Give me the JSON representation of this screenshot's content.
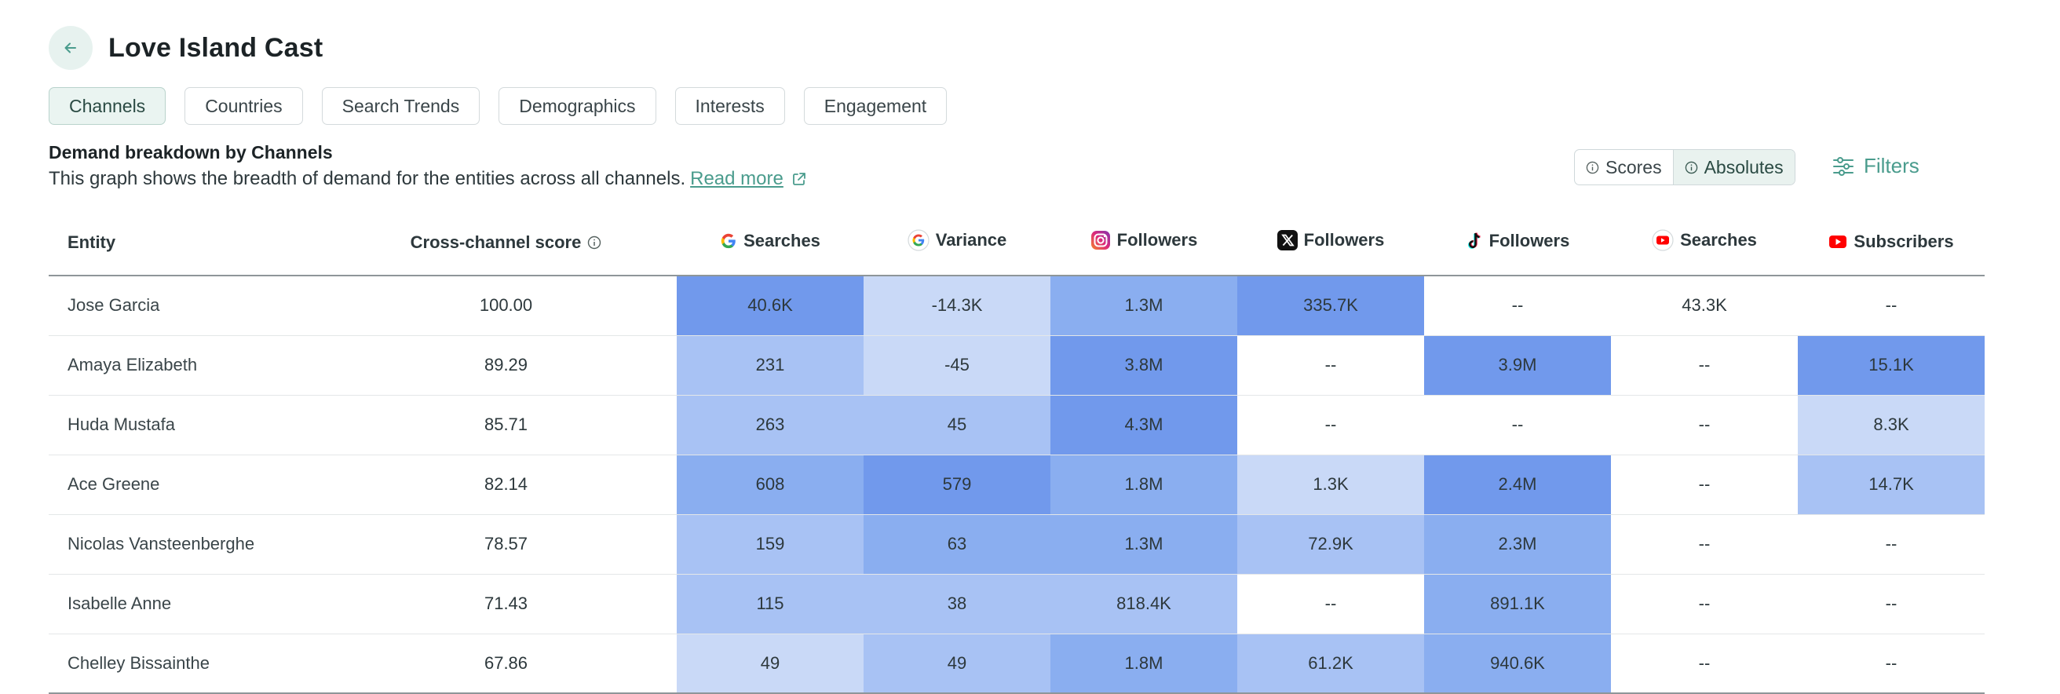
{
  "header": {
    "title": "Love Island Cast",
    "back_icon": "arrow-left-icon"
  },
  "tabs": [
    {
      "label": "Channels",
      "active": true
    },
    {
      "label": "Countries",
      "active": false
    },
    {
      "label": "Search Trends",
      "active": false
    },
    {
      "label": "Demographics",
      "active": false
    },
    {
      "label": "Interests",
      "active": false
    },
    {
      "label": "Engagement",
      "active": false
    }
  ],
  "description": {
    "title": "Demand breakdown by Channels",
    "text": "This graph shows the breadth of demand for the entities across all channels.",
    "read_more": "Read more"
  },
  "toggle": {
    "options": [
      {
        "label": "Scores",
        "active": false
      },
      {
        "label": "Absolutes",
        "active": true
      }
    ]
  },
  "filters": {
    "label": "Filters"
  },
  "colors": {
    "accent": "#4a9c8d",
    "heat_1": "#c9d9f7",
    "heat_2": "#a8c2f4",
    "heat_3": "#8aaef0",
    "heat_4": "#7199ec"
  },
  "table": {
    "columns": [
      {
        "label": "Entity",
        "icon": null
      },
      {
        "label": "Cross-channel score",
        "icon": "info-icon"
      },
      {
        "label": "Searches",
        "icon": "google-icon"
      },
      {
        "label": "Variance",
        "icon": "google-icon"
      },
      {
        "label": "Followers",
        "icon": "instagram-icon"
      },
      {
        "label": "Followers",
        "icon": "x-icon"
      },
      {
        "label": "Followers",
        "icon": "tiktok-icon"
      },
      {
        "label": "Searches",
        "icon": "youtube-icon"
      },
      {
        "label": "Subscribers",
        "icon": "youtube-icon"
      }
    ],
    "rows": [
      {
        "entity": "Jose Garcia",
        "score": "100.00",
        "cells": [
          {
            "value": "40.6K",
            "level": 4
          },
          {
            "value": "-14.3K",
            "level": 1
          },
          {
            "value": "1.3M",
            "level": 3
          },
          {
            "value": "335.7K",
            "level": 4
          },
          {
            "value": "--",
            "level": 0
          },
          {
            "value": "43.3K",
            "level": 0
          },
          {
            "value": "--",
            "level": 0
          }
        ]
      },
      {
        "entity": "Amaya Elizabeth",
        "score": "89.29",
        "cells": [
          {
            "value": "231",
            "level": 2
          },
          {
            "value": "-45",
            "level": 1
          },
          {
            "value": "3.8M",
            "level": 4
          },
          {
            "value": "--",
            "level": 0
          },
          {
            "value": "3.9M",
            "level": 4
          },
          {
            "value": "--",
            "level": 0
          },
          {
            "value": "15.1K",
            "level": 4
          }
        ]
      },
      {
        "entity": "Huda Mustafa",
        "score": "85.71",
        "cells": [
          {
            "value": "263",
            "level": 2
          },
          {
            "value": "45",
            "level": 2
          },
          {
            "value": "4.3M",
            "level": 4
          },
          {
            "value": "--",
            "level": 0
          },
          {
            "value": "--",
            "level": 0
          },
          {
            "value": "--",
            "level": 0
          },
          {
            "value": "8.3K",
            "level": 1
          }
        ]
      },
      {
        "entity": "Ace Greene",
        "score": "82.14",
        "cells": [
          {
            "value": "608",
            "level": 3
          },
          {
            "value": "579",
            "level": 4
          },
          {
            "value": "1.8M",
            "level": 3
          },
          {
            "value": "1.3K",
            "level": 1
          },
          {
            "value": "2.4M",
            "level": 4
          },
          {
            "value": "--",
            "level": 0
          },
          {
            "value": "14.7K",
            "level": 2
          }
        ]
      },
      {
        "entity": "Nicolas Vansteenberghe",
        "score": "78.57",
        "cells": [
          {
            "value": "159",
            "level": 2
          },
          {
            "value": "63",
            "level": 3
          },
          {
            "value": "1.3M",
            "level": 3
          },
          {
            "value": "72.9K",
            "level": 2
          },
          {
            "value": "2.3M",
            "level": 3
          },
          {
            "value": "--",
            "level": 0
          },
          {
            "value": "--",
            "level": 0
          }
        ]
      },
      {
        "entity": "Isabelle Anne",
        "score": "71.43",
        "cells": [
          {
            "value": "115",
            "level": 2
          },
          {
            "value": "38",
            "level": 2
          },
          {
            "value": "818.4K",
            "level": 2
          },
          {
            "value": "--",
            "level": 0
          },
          {
            "value": "891.1K",
            "level": 3
          },
          {
            "value": "--",
            "level": 0
          },
          {
            "value": "--",
            "level": 0
          }
        ]
      },
      {
        "entity": "Chelley Bissainthe",
        "score": "67.86",
        "cells": [
          {
            "value": "49",
            "level": 1
          },
          {
            "value": "49",
            "level": 2
          },
          {
            "value": "1.8M",
            "level": 3
          },
          {
            "value": "61.2K",
            "level": 2
          },
          {
            "value": "940.6K",
            "level": 3
          },
          {
            "value": "--",
            "level": 0
          },
          {
            "value": "--",
            "level": 0
          }
        ]
      }
    ]
  }
}
